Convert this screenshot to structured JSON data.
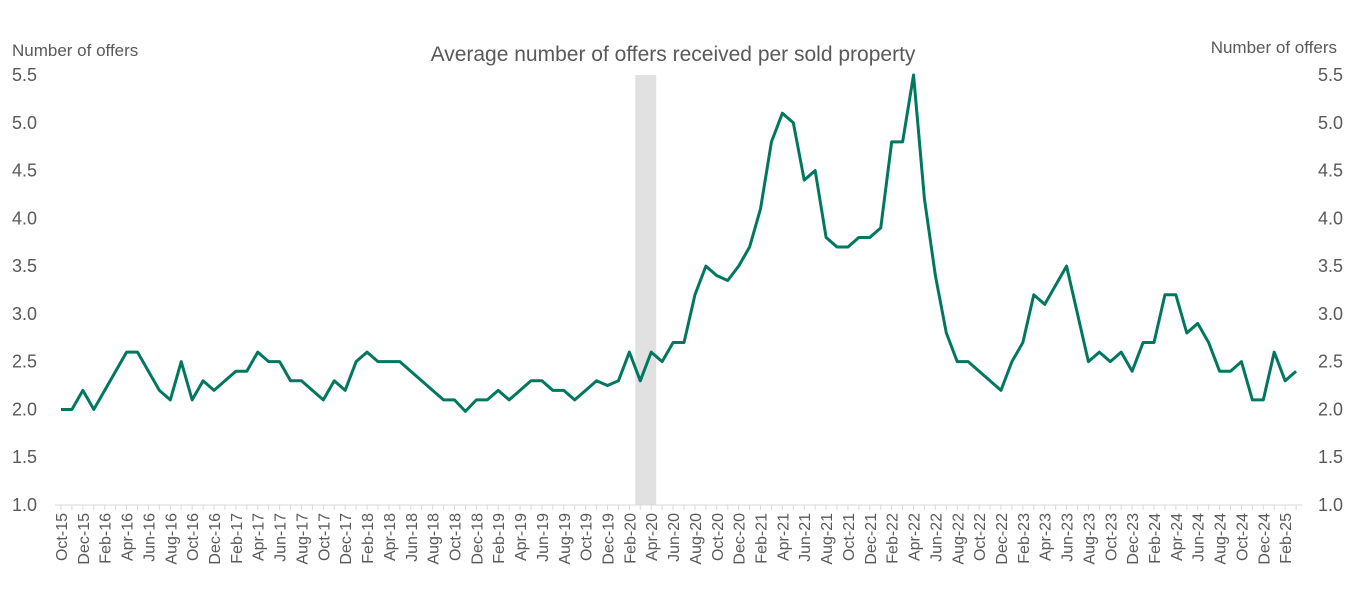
{
  "chart_data": {
    "type": "line",
    "title": "Average number of offers received per sold property",
    "ylabel_left": "Number of offers",
    "ylabel_right": "Number of offers",
    "ylim": [
      1.0,
      5.5
    ],
    "yticks": [
      "1.0",
      "1.5",
      "2.0",
      "2.5",
      "3.0",
      "3.5",
      "4.0",
      "4.5",
      "5.0",
      "5.5"
    ],
    "xtick_labels": [
      "Oct-15",
      "Dec-15",
      "Feb-16",
      "Apr-16",
      "Jun-16",
      "Aug-16",
      "Oct-16",
      "Dec-16",
      "Feb-17",
      "Apr-17",
      "Jun-17",
      "Aug-17",
      "Oct-17",
      "Dec-17",
      "Feb-18",
      "Apr-18",
      "Jun-18",
      "Aug-18",
      "Oct-18",
      "Dec-18",
      "Feb-19",
      "Apr-19",
      "Jun-19",
      "Aug-19",
      "Oct-19",
      "Dec-19",
      "Feb-20",
      "Apr-20",
      "Jun-20",
      "Aug-20",
      "Oct-20",
      "Dec-20",
      "Feb-21",
      "Apr-21",
      "Jun-21",
      "Aug-21",
      "Oct-21",
      "Dec-21",
      "Feb-22",
      "Apr-22",
      "Jun-22",
      "Aug-22",
      "Oct-22",
      "Dec-22",
      "Feb-23",
      "Apr-23",
      "Jun-23",
      "Aug-23",
      "Oct-23",
      "Dec-23",
      "Feb-24",
      "Apr-24",
      "Jun-24",
      "Aug-24",
      "Oct-24",
      "Dec-24",
      "Feb-25"
    ],
    "shaded_region": {
      "start_month_index": 53,
      "end_month_index": 54
    },
    "series": [
      {
        "name": "Average number of offers",
        "color": "#00785f",
        "start": "Oct-15",
        "values": [
          2.0,
          2.0,
          2.2,
          2.0,
          2.2,
          2.4,
          2.6,
          2.6,
          2.4,
          2.2,
          2.1,
          2.5,
          2.1,
          2.3,
          2.2,
          2.3,
          2.4,
          2.4,
          2.6,
          2.5,
          2.5,
          2.3,
          2.3,
          2.2,
          2.1,
          2.3,
          2.2,
          2.5,
          2.6,
          2.5,
          2.5,
          2.5,
          2.4,
          2.3,
          2.2,
          2.1,
          2.1,
          1.98,
          2.1,
          2.1,
          2.2,
          2.1,
          2.2,
          2.3,
          2.3,
          2.2,
          2.2,
          2.1,
          2.2,
          2.3,
          2.25,
          2.3,
          2.6,
          2.3,
          2.6,
          2.5,
          2.7,
          2.7,
          3.2,
          3.5,
          3.4,
          3.35,
          3.5,
          3.7,
          4.1,
          4.8,
          5.1,
          5.0,
          4.4,
          4.5,
          3.8,
          3.7,
          3.7,
          3.8,
          3.8,
          3.9,
          4.8,
          4.8,
          5.5,
          4.2,
          3.4,
          2.8,
          2.5,
          2.5,
          2.4,
          2.3,
          2.2,
          2.5,
          2.7,
          3.2,
          3.1,
          3.3,
          3.5,
          3.0,
          2.5,
          2.6,
          2.5,
          2.6,
          2.4,
          2.7,
          2.7,
          3.2,
          3.2,
          2.8,
          2.9,
          2.7,
          2.4,
          2.4,
          2.5,
          2.1,
          2.1,
          2.6,
          2.3,
          2.4
        ]
      }
    ]
  }
}
